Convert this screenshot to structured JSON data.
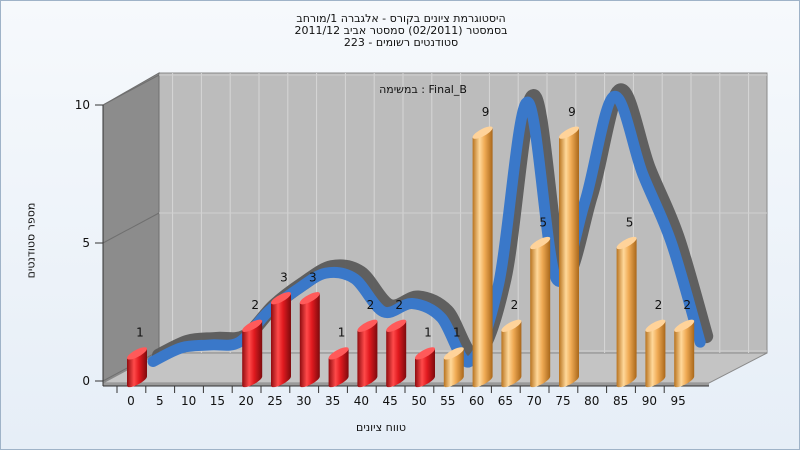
{
  "chart": {
    "title_lines": [
      "היסטוגרמת ציונים בקורס - אלגברה 1/מורחב",
      "בסמסטר  (02/2011)  סמסטר אביב 2011/12",
      "סטודנטים רשומים - 223"
    ],
    "plot_label": "במשימה : Final_B",
    "ylabel": "מספר סטודנטים",
    "xlabel": "טווח ציונים"
  },
  "chart_data": {
    "type": "bar",
    "title": "היסטוגרמת ציונים בקורס - אלגברה 1/מורחב",
    "xlabel": "טווח ציונים",
    "ylabel": "מספר סטודנטים",
    "ylim": [
      0,
      10
    ],
    "y_ticks": [
      0,
      5,
      10
    ],
    "categories": [
      "0",
      "5",
      "10",
      "15",
      "20",
      "25",
      "30",
      "35",
      "40",
      "45",
      "50",
      "55",
      "60",
      "65",
      "70",
      "75",
      "80",
      "85",
      "90",
      "95"
    ],
    "values": [
      1,
      0,
      0,
      0,
      2,
      3,
      3,
      1,
      2,
      2,
      1,
      1,
      9,
      2,
      5,
      9,
      0,
      5,
      2,
      2
    ],
    "bar_colors": [
      "#d9141a",
      "#d9141a",
      "#d9141a",
      "#d9141a",
      "#d9141a",
      "#d9141a",
      "#d9141a",
      "#d9141a",
      "#d9141a",
      "#d9141a",
      "#d9141a",
      "#e8a34a",
      "#e8a34a",
      "#e8a34a",
      "#e8a34a",
      "#e8a34a",
      "#e8a34a",
      "#e8a34a",
      "#e8a34a",
      "#e8a34a"
    ],
    "data_labels": [
      "1",
      "",
      "",
      "",
      "2",
      "3",
      "3",
      "1",
      "2",
      "2",
      "1",
      "1",
      "9",
      "2",
      "5",
      "9",
      "",
      "5",
      "2",
      "2"
    ],
    "curve_values": [
      0.2,
      0.7,
      0.8,
      0.9,
      2.0,
      2.8,
      3.4,
      3.2,
      2.0,
      2.3,
      1.8,
      0.2,
      3.0,
      9.6,
      3.2,
      6.0,
      9.8,
      7.0,
      4.5,
      0.9
    ],
    "colors": {
      "red_bars": "#d9141a",
      "orange_bars": "#e8a34a",
      "curve_front": "#3a78c9",
      "curve_back": "#5a5a5a",
      "plot_bg": "#bdbdbd",
      "side_wall": "#8c8c8c"
    },
    "grid": true
  }
}
